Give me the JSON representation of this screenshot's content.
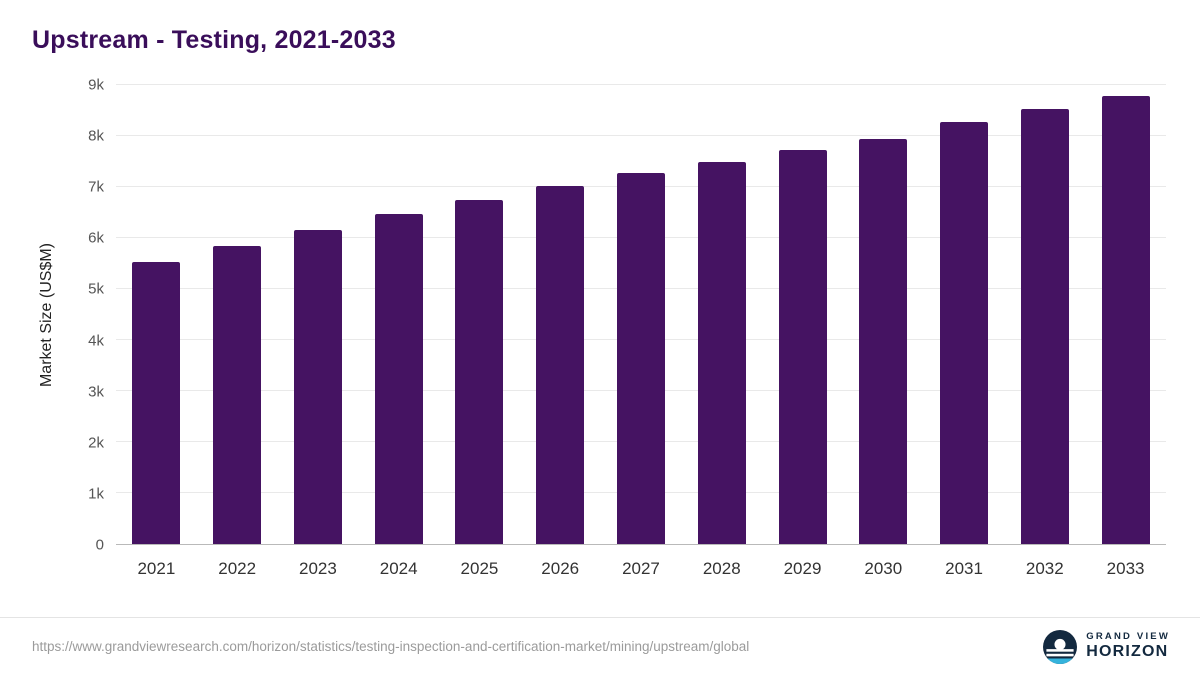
{
  "chart": {
    "title": "Upstream - Testing, 2021-2033",
    "ylabel": "Market Size (US$M)"
  },
  "chart_data": {
    "type": "bar",
    "title": "Upstream - Testing, 2021-2033",
    "xlabel": "",
    "ylabel": "Market Size (US$M)",
    "categories": [
      "2021",
      "2022",
      "2023",
      "2024",
      "2025",
      "2026",
      "2027",
      "2028",
      "2029",
      "2030",
      "2031",
      "2032",
      "2033"
    ],
    "values": [
      5530,
      5840,
      6160,
      6470,
      6750,
      7020,
      7280,
      7500,
      7730,
      7950,
      8280,
      8530,
      8790
    ],
    "ylim": [
      0,
      9000
    ],
    "ytick_step": 1000,
    "ytick_labels": [
      "0",
      "1k",
      "2k",
      "3k",
      "4k",
      "5k",
      "6k",
      "7k",
      "8k",
      "9k"
    ],
    "grid": true,
    "legend": false,
    "bar_color": "#451362"
  },
  "footer": {
    "source_url": "https://www.grandviewresearch.com/horizon/statistics/testing-inspection-and-certification-market/mining/upstream/global",
    "brand_line1": "GRAND VIEW",
    "brand_line2": "HORIZON"
  },
  "colors": {
    "title": "#3a0e5a",
    "bar": "#451362",
    "gridline": "#e9e9e9",
    "axis": "#b9b9b9",
    "logo_navy": "#13293f",
    "logo_blue": "#35b3dc"
  }
}
